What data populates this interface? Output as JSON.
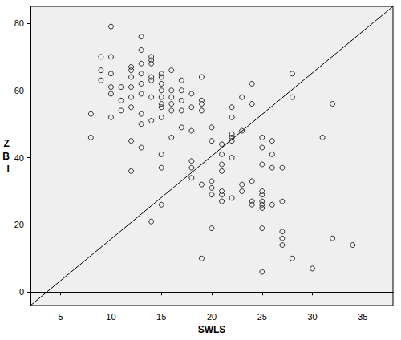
{
  "chart_data": {
    "type": "scatter",
    "x_label": "SWLS",
    "y_label": "ZBI",
    "xlim": [
      2,
      38
    ],
    "ylim": [
      -4,
      85
    ],
    "xticks": [
      5,
      10,
      15,
      20,
      25,
      30,
      35
    ],
    "yticks": [
      0,
      20,
      40,
      60,
      80
    ],
    "grid": false,
    "color": "#000000",
    "marker": "hollow_circle",
    "x": [
      10,
      13,
      9,
      10,
      9,
      10,
      9,
      10,
      10,
      8,
      8,
      10,
      11,
      11,
      11,
      12,
      12,
      12,
      12,
      12,
      12,
      12,
      12,
      13,
      13,
      13,
      13,
      13,
      13,
      13,
      13,
      14,
      14,
      14,
      14,
      14,
      14,
      14,
      14,
      15,
      15,
      15,
      15,
      15,
      15,
      15,
      15,
      15,
      15,
      15,
      16,
      16,
      16,
      16,
      16,
      16,
      17,
      17,
      17,
      17,
      17,
      18,
      18,
      18,
      18,
      18,
      18,
      19,
      19,
      19,
      19,
      19,
      19,
      20,
      20,
      20,
      20,
      20,
      20,
      21,
      21,
      21,
      21,
      21,
      21,
      21,
      22,
      22,
      22,
      22,
      22,
      22,
      22,
      23,
      23,
      23,
      23,
      24,
      24,
      24,
      24,
      24,
      25,
      25,
      25,
      25,
      25,
      25,
      25,
      25,
      25,
      25,
      26,
      26,
      26,
      26,
      27,
      27,
      27,
      27,
      27,
      28,
      28,
      28,
      30,
      31,
      32,
      32,
      34
    ],
    "values": [
      79,
      76,
      70,
      70,
      66,
      65,
      63,
      61,
      59,
      53,
      46,
      52,
      61,
      57,
      54,
      67,
      66,
      64,
      61,
      58,
      55,
      45,
      36,
      72,
      68,
      65,
      62,
      59,
      53,
      50,
      43,
      70,
      69,
      68,
      64,
      63,
      58,
      51,
      21,
      65,
      64,
      62,
      60,
      58,
      56,
      55,
      52,
      41,
      37,
      26,
      66,
      60,
      58,
      56,
      54,
      46,
      63,
      60,
      57,
      54,
      49,
      59,
      55,
      48,
      39,
      37,
      34,
      64,
      57,
      56,
      54,
      32,
      10,
      49,
      45,
      33,
      31,
      29,
      19,
      44,
      41,
      38,
      36,
      30,
      29,
      27,
      55,
      52,
      47,
      46,
      45,
      40,
      28,
      58,
      48,
      32,
      30,
      62,
      56,
      33,
      27,
      26,
      46,
      43,
      38,
      30,
      29,
      27,
      26,
      25,
      19,
      6,
      45,
      41,
      37,
      26,
      37,
      27,
      18,
      16,
      14,
      65,
      58,
      10,
      7,
      46,
      56,
      16,
      14
    ],
    "reference_line": {
      "x": [
        2,
        38
      ],
      "y": [
        -4,
        85
      ]
    }
  }
}
